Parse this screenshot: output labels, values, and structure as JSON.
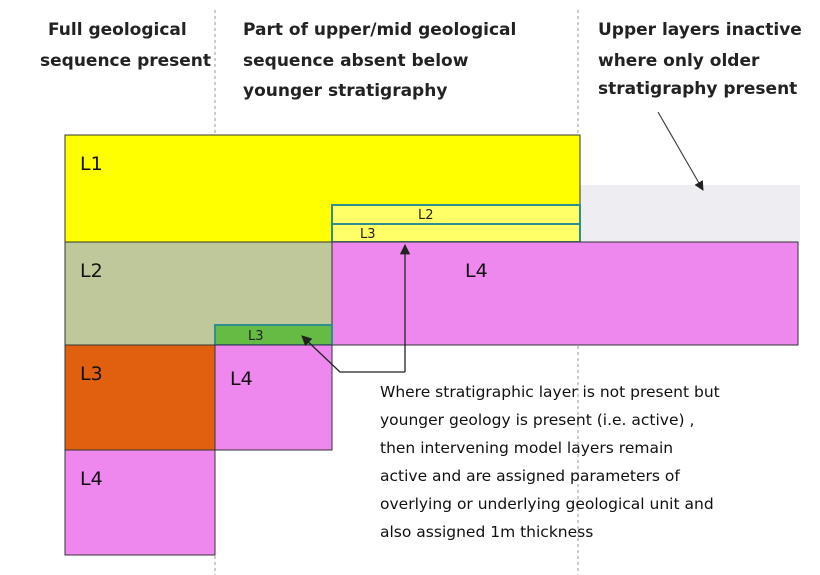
{
  "headers": [
    {
      "lines": [
        "Full geological",
        "sequence present"
      ]
    },
    {
      "lines": [
        "Part of upper/mid geological",
        "sequence absent below",
        "younger stratigraphy"
      ]
    },
    {
      "lines": [
        "Upper layers inactive",
        "where only older",
        "stratigraphy present"
      ]
    }
  ],
  "blocks": [
    {
      "label": "L1"
    },
    {
      "label": "L2"
    },
    {
      "label": "L3"
    },
    {
      "label": "L4"
    },
    {
      "label": "L4"
    },
    {
      "label": "L2"
    },
    {
      "label": "L3"
    },
    {
      "label": "L3"
    },
    {
      "label": "L4"
    }
  ],
  "note": {
    "lines": [
      "Where stratigraphic layer is not present but",
      "younger geology is present (i.e. active) ,",
      "then intervening model layers remain",
      "active and are assigned parameters of",
      "overlying or underlying geological unit and",
      "also assigned 1m thickness"
    ]
  }
}
